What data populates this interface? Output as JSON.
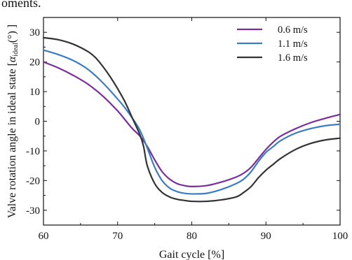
{
  "page_text": {
    "top_fragment": "oments."
  },
  "chart_data": {
    "type": "line",
    "xlabel": "Gait cycle [%]",
    "ylabel_prefix": "Valve rotation angle in ideal state [",
    "ylabel_alpha": "α",
    "ylabel_sub": "ideal",
    "ylabel_suffix": "(°) ]",
    "xlim": [
      60,
      100
    ],
    "ylim": [
      -35,
      35
    ],
    "xticks": [
      60,
      70,
      80,
      90,
      100
    ],
    "yticks": [
      -30,
      -20,
      -10,
      0,
      10,
      20,
      30
    ],
    "legend_position": "top-right",
    "grid": false,
    "series": [
      {
        "name": "0.6 m/s",
        "color": "#7a2e9a",
        "x": [
          60,
          62,
          64,
          66,
          68,
          70,
          71,
          72,
          73,
          74,
          75,
          76,
          77,
          78,
          79,
          80,
          82,
          84,
          86,
          87,
          88,
          89,
          90,
          91,
          92,
          94,
          96,
          98,
          100
        ],
        "y": [
          20,
          18,
          15.5,
          12.5,
          8.5,
          3.5,
          0.5,
          -2.5,
          -5,
          -8.5,
          -13,
          -17,
          -19.5,
          -21,
          -21.7,
          -22,
          -21.7,
          -20.5,
          -18.8,
          -17.5,
          -15.5,
          -12.5,
          -9.5,
          -7,
          -5,
          -2.5,
          -0.5,
          1,
          2.3
        ]
      },
      {
        "name": "1.1 m/s",
        "color": "#3a7dc2",
        "x": [
          60,
          62,
          64,
          66,
          68,
          70,
          71,
          72,
          73,
          74,
          75,
          76,
          77,
          78,
          79,
          80,
          82,
          84,
          86,
          87,
          88,
          89,
          90,
          91,
          92,
          94,
          96,
          98,
          100
        ],
        "y": [
          24,
          22.5,
          20.5,
          17.5,
          13,
          7.5,
          4.5,
          1,
          -3,
          -9,
          -15.5,
          -20,
          -22.5,
          -23.7,
          -24.3,
          -24.5,
          -24.3,
          -23,
          -21,
          -19.5,
          -17,
          -13.5,
          -10.5,
          -8.5,
          -6.5,
          -4,
          -2.5,
          -1.5,
          -1
        ]
      },
      {
        "name": "1.6 m/s",
        "color": "#333333",
        "x": [
          60,
          62,
          64,
          66,
          67,
          68,
          69,
          70,
          71,
          72,
          73,
          73.5,
          74,
          75,
          76,
          77,
          78,
          79,
          80,
          82,
          84,
          86,
          87,
          88,
          89,
          90,
          91,
          92,
          94,
          96,
          98,
          100
        ],
        "y": [
          28.2,
          27.5,
          26,
          23.5,
          21.5,
          18.5,
          15,
          11,
          6.5,
          1,
          -4.5,
          -8.5,
          -15,
          -21,
          -24,
          -25.5,
          -26.3,
          -26.7,
          -27,
          -27,
          -26.5,
          -25.5,
          -24,
          -22,
          -19,
          -16.5,
          -14.5,
          -12.5,
          -9.5,
          -7.5,
          -6.3,
          -5.7
        ]
      }
    ]
  }
}
